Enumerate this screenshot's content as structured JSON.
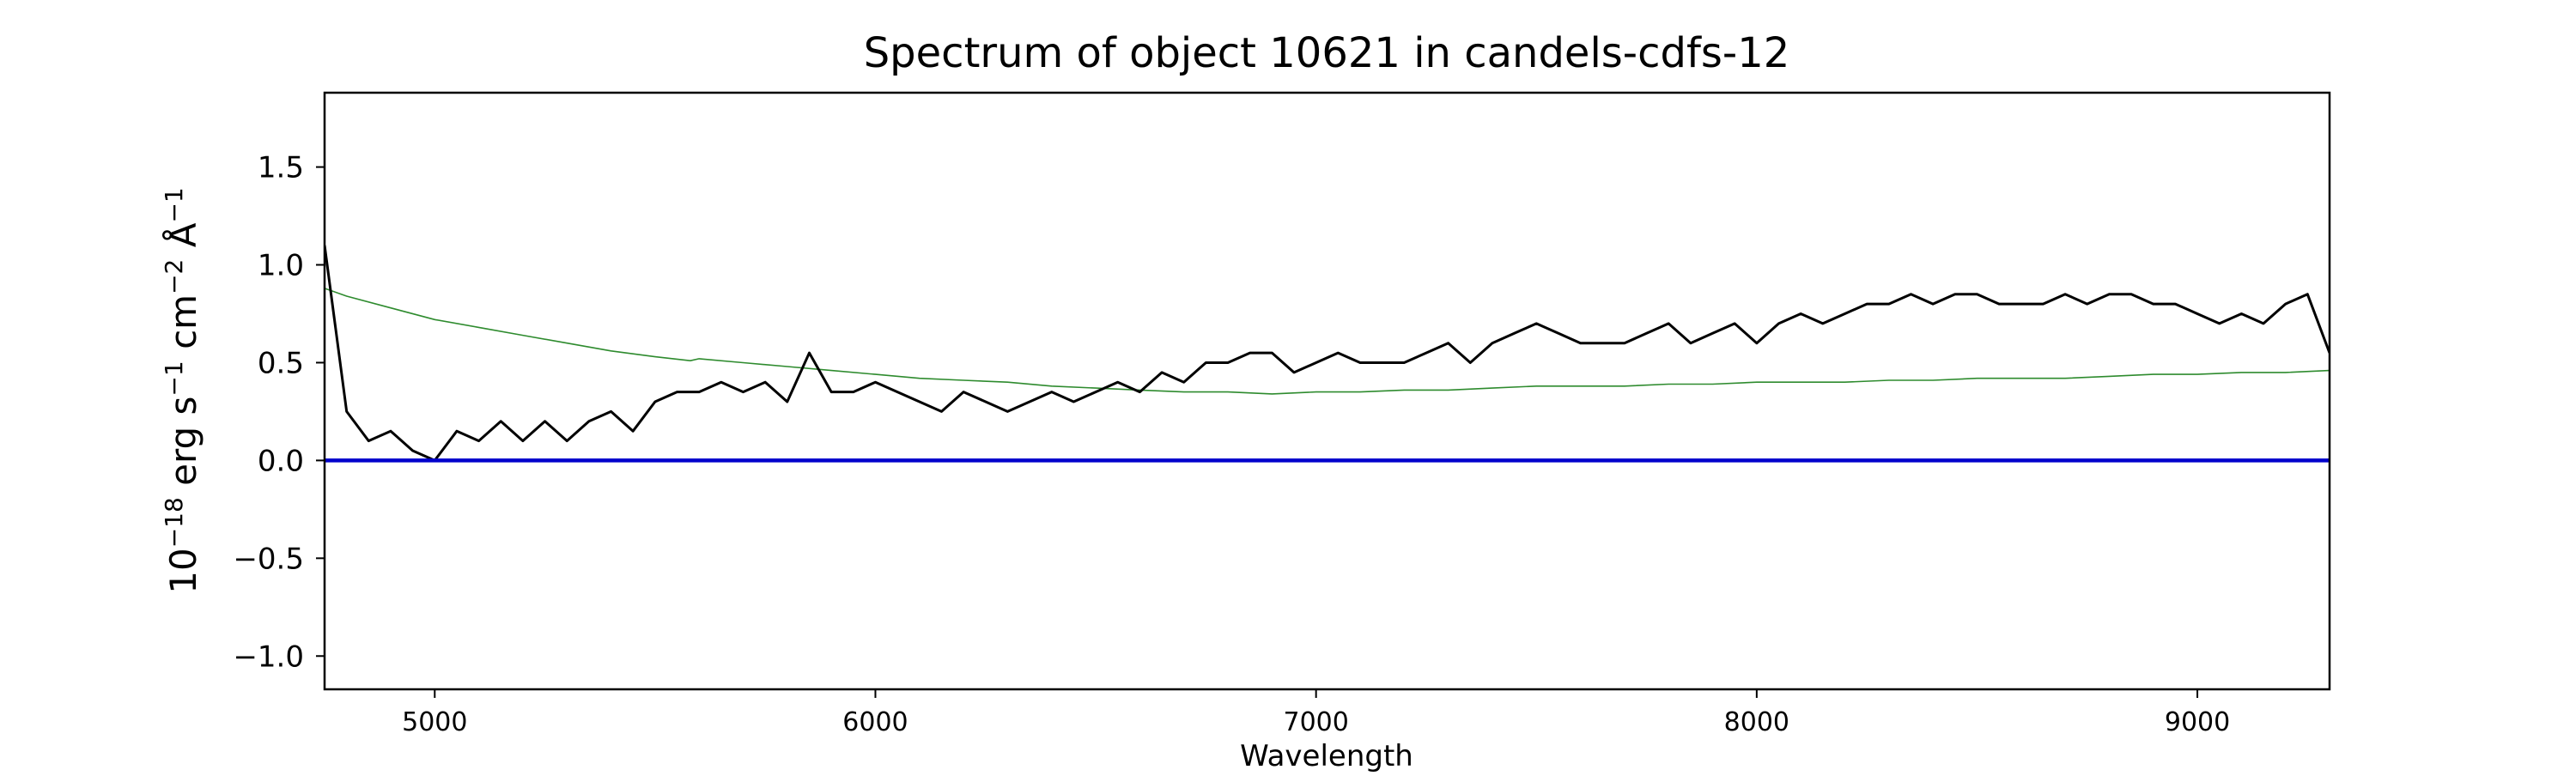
{
  "chart_data": {
    "type": "line",
    "title": "Spectrum of object 10621 in candels-cdfs-12",
    "xlabel": "Wavelength",
    "ylabel": {
      "base": "10",
      "exp1": "−18",
      "mid1": " erg s",
      "exp2": "−1",
      "mid2": " cm",
      "exp3": "−2",
      "mid3": " Å",
      "exp4": "−1"
    },
    "xlim": [
      4750,
      9300
    ],
    "ylim": [
      -1.17,
      1.88
    ],
    "x_ticks": [
      5000,
      6000,
      7000,
      8000,
      9000
    ],
    "x_tick_labels": [
      "5000",
      "6000",
      "7000",
      "8000",
      "9000"
    ],
    "y_ticks": [
      -1.0,
      -0.5,
      0.0,
      0.5,
      1.0,
      1.5
    ],
    "y_tick_labels": [
      "−1.0",
      "−0.5",
      "0.0",
      "0.5",
      "1.0",
      "1.5"
    ],
    "grid": false,
    "colors": {
      "spectrum": "#000000",
      "model": "#2e8b2e",
      "zero_line": "#0000cc",
      "frame": "#000000"
    },
    "series": [
      {
        "role": "flux",
        "x": [
          4750,
          4800,
          4850,
          4900,
          4950,
          5000,
          5050,
          5100,
          5150,
          5200,
          5250,
          5300,
          5350,
          5400,
          5450,
          5500,
          5550,
          5600,
          5650,
          5700,
          5750,
          5800,
          5850,
          5900,
          5950,
          6000,
          6050,
          6100,
          6150,
          6200,
          6250,
          6300,
          6350,
          6400,
          6450,
          6500,
          6550,
          6600,
          6650,
          6700,
          6750,
          6800,
          6850,
          6900,
          6950,
          7000,
          7050,
          7100,
          7150,
          7200,
          7250,
          7300,
          7350,
          7400,
          7450,
          7500,
          7550,
          7600,
          7650,
          7700,
          7750,
          7800,
          7850,
          7900,
          7950,
          8000,
          8050,
          8100,
          8150,
          8200,
          8250,
          8300,
          8350,
          8400,
          8450,
          8500,
          8550,
          8600,
          8650,
          8700,
          8750,
          8800,
          8850,
          8900,
          8950,
          9000,
          9050,
          9100,
          9150,
          9200,
          9250,
          9300
        ],
        "y": [
          1.1,
          0.25,
          0.1,
          0.15,
          0.05,
          0.0,
          0.15,
          0.1,
          0.2,
          0.1,
          0.2,
          0.1,
          0.2,
          0.25,
          0.15,
          0.3,
          0.35,
          0.35,
          0.4,
          0.35,
          0.4,
          0.3,
          0.55,
          0.35,
          0.35,
          0.4,
          0.35,
          0.3,
          0.25,
          0.35,
          0.3,
          0.25,
          0.3,
          0.35,
          0.3,
          0.35,
          0.4,
          0.35,
          0.45,
          0.4,
          0.5,
          0.5,
          0.55,
          0.55,
          0.45,
          0.5,
          0.55,
          0.5,
          0.5,
          0.5,
          0.55,
          0.6,
          0.5,
          0.6,
          0.65,
          0.7,
          0.65,
          0.6,
          0.6,
          0.6,
          0.65,
          0.7,
          0.6,
          0.65,
          0.7,
          0.6,
          0.7,
          0.75,
          0.7,
          0.75,
          0.8,
          0.8,
          0.85,
          0.8,
          0.85,
          0.85,
          0.8,
          0.8,
          0.8,
          0.85,
          0.8,
          0.85,
          0.85,
          0.8,
          0.8,
          0.75,
          0.7,
          0.75,
          0.7,
          0.8,
          0.85,
          0.55
        ]
      },
      {
        "role": "model",
        "x": [
          4750,
          4800,
          4900,
          5000,
          5100,
          5200,
          5300,
          5400,
          5500,
          5580,
          5600,
          5700,
          5800,
          5900,
          6000,
          6100,
          6200,
          6300,
          6400,
          6500,
          6600,
          6700,
          6800,
          6900,
          7000,
          7100,
          7200,
          7300,
          7400,
          7500,
          7600,
          7700,
          7800,
          7900,
          8000,
          8100,
          8200,
          8300,
          8400,
          8500,
          8600,
          8700,
          8800,
          8900,
          9000,
          9100,
          9200,
          9300
        ],
        "y": [
          0.88,
          0.84,
          0.78,
          0.72,
          0.68,
          0.64,
          0.6,
          0.56,
          0.53,
          0.51,
          0.52,
          0.5,
          0.48,
          0.46,
          0.44,
          0.42,
          0.41,
          0.4,
          0.38,
          0.37,
          0.36,
          0.35,
          0.35,
          0.34,
          0.35,
          0.35,
          0.36,
          0.36,
          0.37,
          0.38,
          0.38,
          0.38,
          0.39,
          0.39,
          0.4,
          0.4,
          0.4,
          0.41,
          0.41,
          0.42,
          0.42,
          0.42,
          0.43,
          0.44,
          0.44,
          0.45,
          0.45,
          0.46
        ]
      },
      {
        "role": "zero",
        "x": [
          4750,
          9300
        ],
        "y": [
          0.0,
          0.0
        ]
      }
    ]
  }
}
